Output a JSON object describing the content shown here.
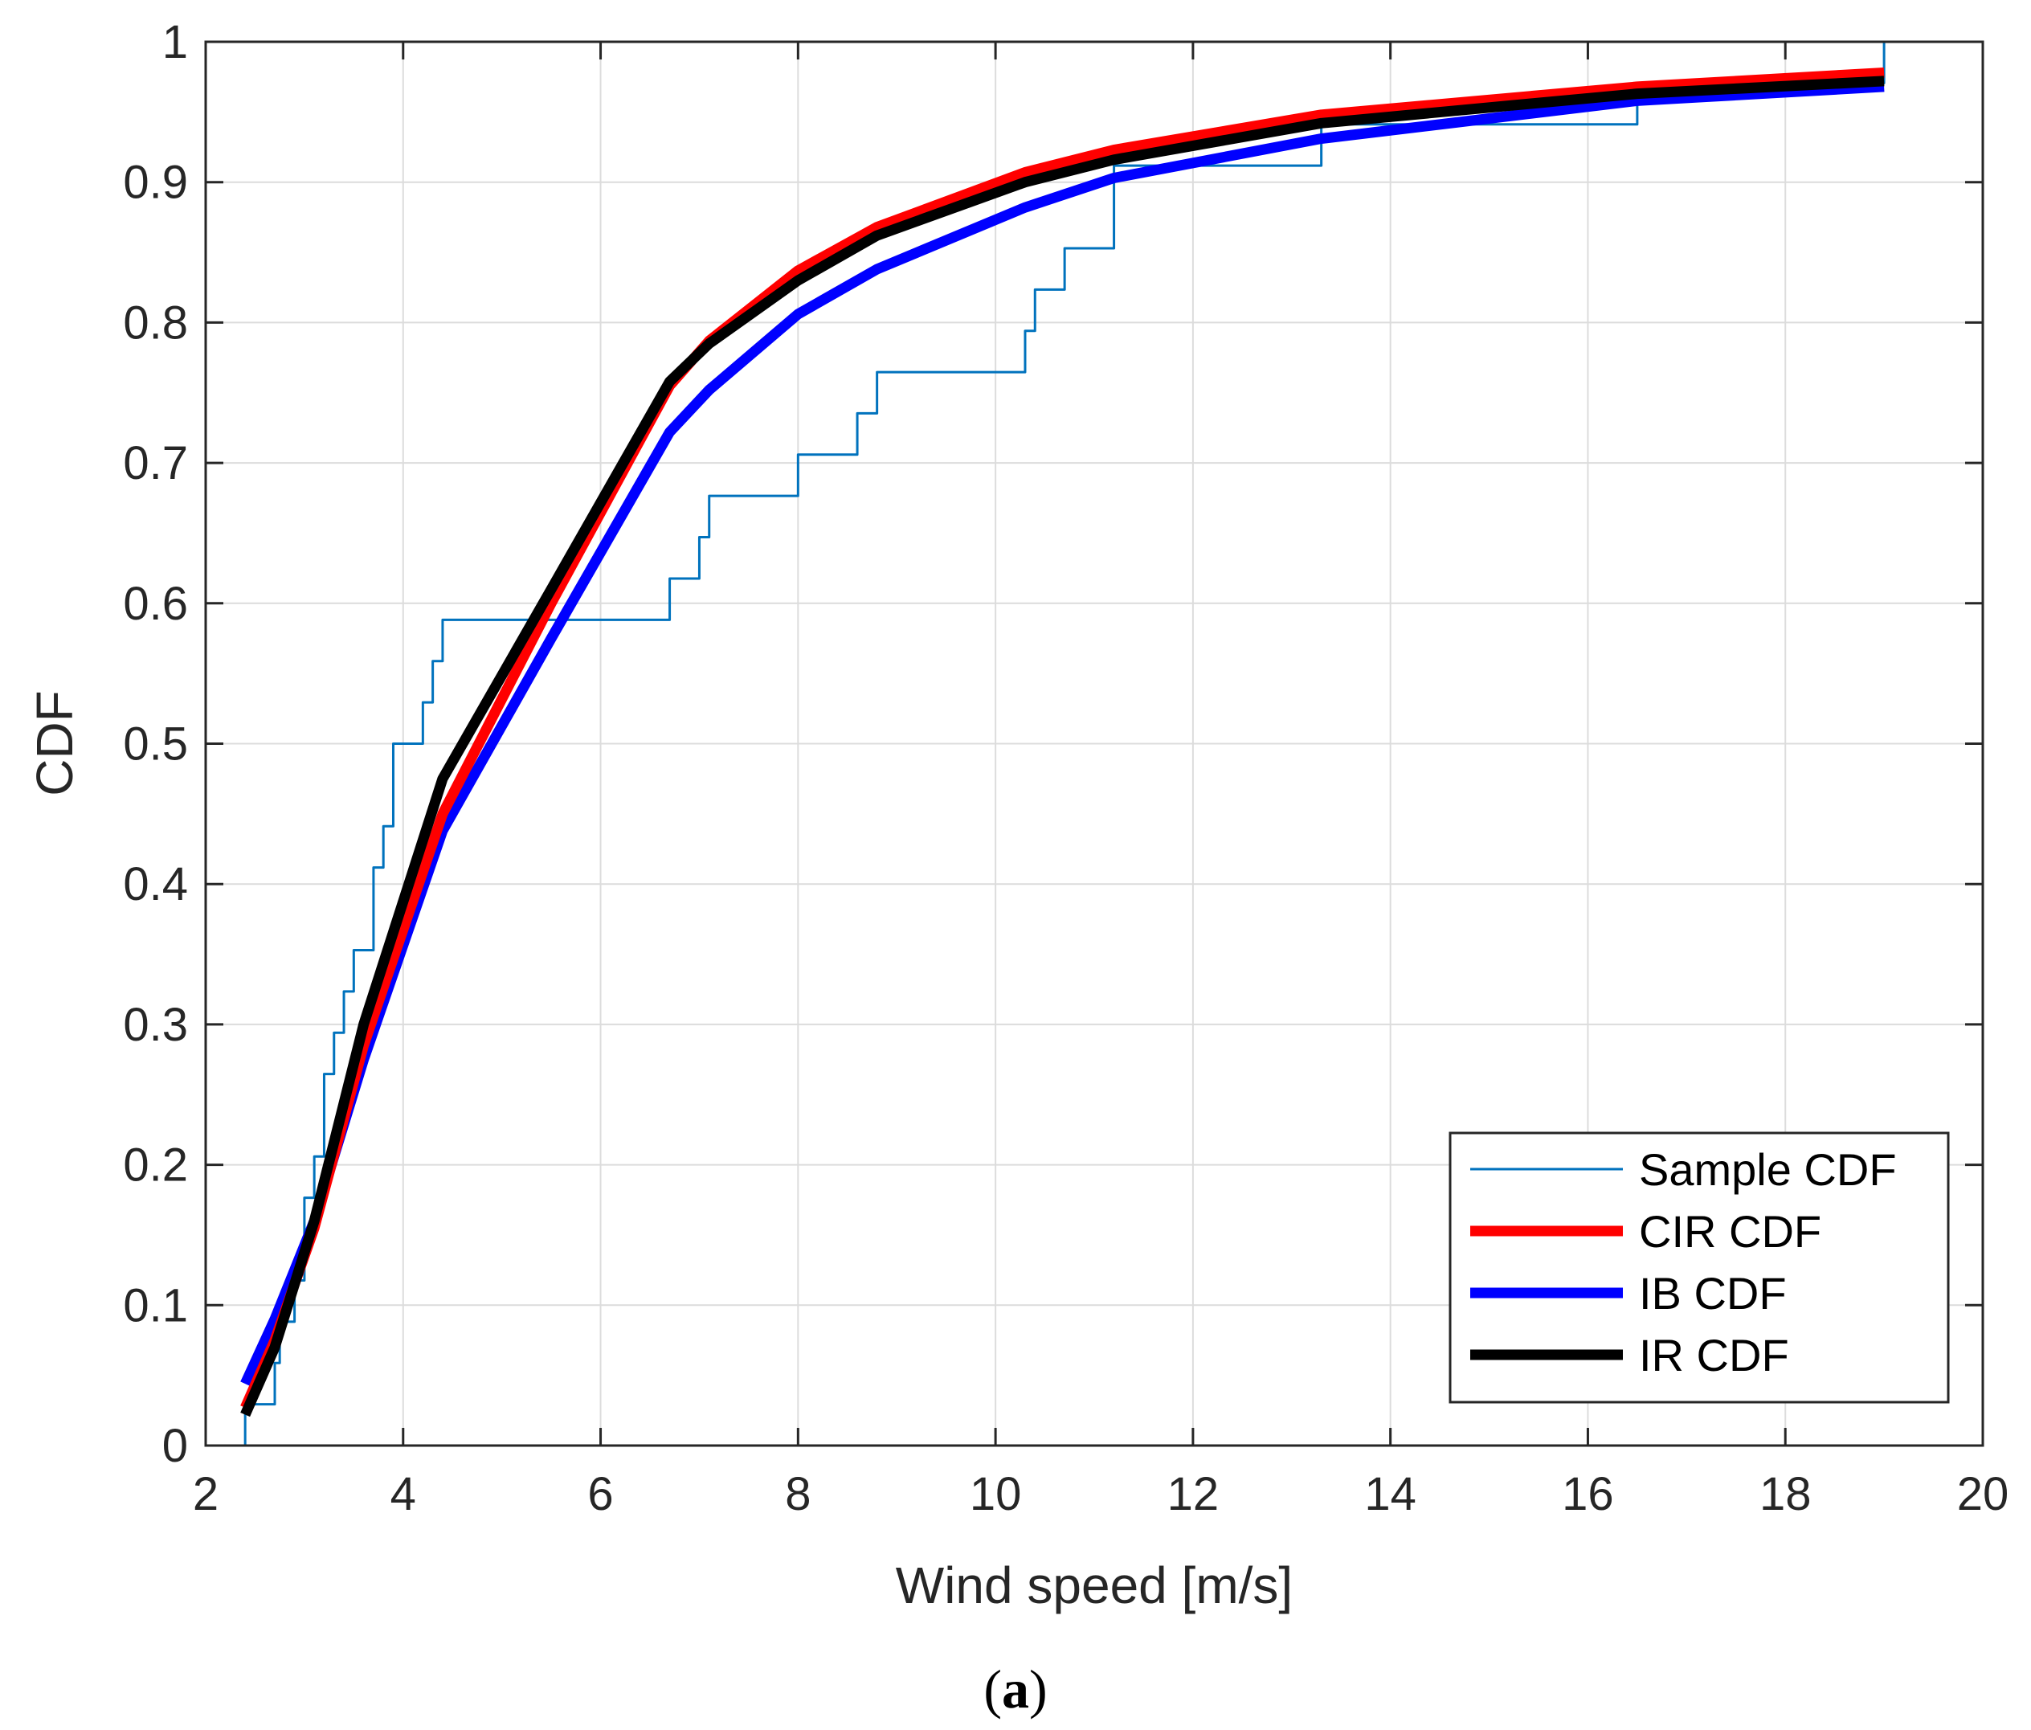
{
  "colors": {
    "sample": "#0072BD",
    "cir": "#FF0000",
    "ib": "#0000FF",
    "ir": "#000000",
    "grid": "#DCDCDC",
    "axis": "#262626"
  },
  "caption": {
    "open": "(",
    "letter": "a",
    "close": ")"
  },
  "chart_data": {
    "type": "line",
    "title": "",
    "xlabel": "Wind speed [m/s]",
    "ylabel": "CDF",
    "xlim": [
      2,
      20
    ],
    "ylim": [
      0,
      1
    ],
    "grid": true,
    "legend_position": "bottom-right",
    "x_ticks": [
      2,
      4,
      6,
      8,
      10,
      12,
      14,
      16,
      18,
      20
    ],
    "x_tick_labels": [
      "2",
      "4",
      "6",
      "8",
      "10",
      "12",
      "14",
      "16",
      "18",
      "20"
    ],
    "y_ticks": [
      0,
      0.1,
      0.2,
      0.3,
      0.4,
      0.5,
      0.6,
      0.7,
      0.8,
      0.9,
      1
    ],
    "y_tick_labels": [
      "0",
      "0.1",
      "0.2",
      "0.3",
      "0.4",
      "0.5",
      "0.6",
      "0.7",
      "0.8",
      "0.9",
      "1"
    ],
    "series": [
      {
        "name": "Sample CDF",
        "color": "#0072BD",
        "style": "stairs",
        "x": [
          2.4,
          2.4,
          2.7,
          2.75,
          2.9,
          3.0,
          3.1,
          3.2,
          3.3,
          3.4,
          3.5,
          3.7,
          3.8,
          3.9,
          4.2,
          4.3,
          4.4,
          6.7,
          7.0,
          7.1,
          8.0,
          8.6,
          8.8,
          10.3,
          10.4,
          10.7,
          11.2,
          13.3,
          14.7,
          16.5,
          19.0
        ],
        "y": [
          0.0,
          0.0294,
          0.0588,
          0.0882,
          0.1176,
          0.1765,
          0.2059,
          0.2647,
          0.2941,
          0.3235,
          0.3529,
          0.4118,
          0.4412,
          0.5,
          0.5294,
          0.5588,
          0.5882,
          0.6176,
          0.6471,
          0.6765,
          0.7059,
          0.7353,
          0.7647,
          0.7941,
          0.8235,
          0.8529,
          0.9118,
          0.9412,
          0.9412,
          0.9706,
          1.0
        ]
      },
      {
        "name": "CIR CDF",
        "color": "#FF0000",
        "style": "line",
        "x": [
          2.4,
          2.7,
          3.1,
          3.6,
          4.4,
          5.5,
          6.7,
          7.1,
          8.0,
          8.8,
          10.3,
          11.2,
          13.3,
          16.5,
          19.0
        ],
        "y": [
          0.027,
          0.075,
          0.155,
          0.285,
          0.45,
          0.6,
          0.755,
          0.787,
          0.837,
          0.868,
          0.907,
          0.923,
          0.948,
          0.968,
          0.978
        ]
      },
      {
        "name": "IB CDF",
        "color": "#0000FF",
        "style": "line",
        "x": [
          2.4,
          2.7,
          3.1,
          3.6,
          4.4,
          5.5,
          6.7,
          7.1,
          8.0,
          8.8,
          10.3,
          11.2,
          13.3,
          16.5,
          19.0
        ],
        "y": [
          0.044,
          0.09,
          0.16,
          0.275,
          0.438,
          0.575,
          0.722,
          0.752,
          0.806,
          0.838,
          0.882,
          0.903,
          0.931,
          0.958,
          0.968
        ]
      },
      {
        "name": "IR CDF",
        "color": "#000000",
        "style": "line",
        "x": [
          2.4,
          2.7,
          3.1,
          3.6,
          4.4,
          5.5,
          6.7,
          7.1,
          8.0,
          8.8,
          10.3,
          11.2,
          13.3,
          16.5,
          19.0
        ],
        "y": [
          0.022,
          0.07,
          0.16,
          0.3,
          0.475,
          0.61,
          0.758,
          0.785,
          0.83,
          0.862,
          0.9,
          0.916,
          0.942,
          0.963,
          0.972
        ]
      }
    ]
  }
}
